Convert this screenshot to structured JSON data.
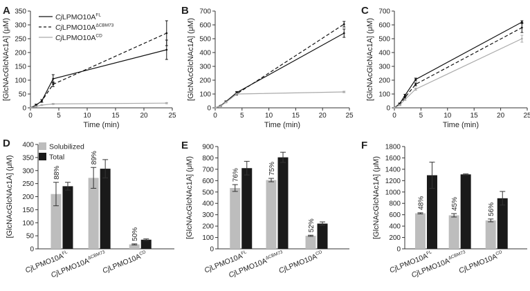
{
  "colors": {
    "fl": "#111111",
    "cbm": "#111111",
    "cd": "#aaaaaa",
    "solubilized": "#bdbdbd",
    "total": "#1a1a1a",
    "axis": "#333333"
  },
  "legend_line": [
    {
      "prefix": "Cj",
      "main": "LPMO10A",
      "sup": "FL",
      "style": "solid",
      "color": "#111111"
    },
    {
      "prefix": "Cj",
      "main": "LPMO10A",
      "sup": "ΔCBM73",
      "style": "dashed",
      "color": "#111111"
    },
    {
      "prefix": "Cj",
      "main": "LPMO10A",
      "sup": "CD",
      "style": "solid",
      "color": "#aaaaaa"
    }
  ],
  "legend_bar": [
    {
      "label": "Solubilized",
      "color": "#bdbdbd"
    },
    {
      "label": "Total",
      "color": "#1a1a1a"
    }
  ],
  "chart_data": [
    {
      "panel": "A",
      "type": "line",
      "xlabel": "Time (min)",
      "ylabel": "[GlcNAcGlcNAc1A] (μM)",
      "xlim": [
        0,
        25
      ],
      "ylim": [
        0,
        350
      ],
      "xticks": [
        0,
        5,
        10,
        15,
        20,
        25
      ],
      "yticks": [
        0,
        50,
        100,
        150,
        200,
        250,
        300,
        350
      ],
      "x": [
        0,
        1,
        2,
        4,
        24
      ],
      "series": [
        {
          "name": "CjLPMO10AFL",
          "style": "solid",
          "color": "#111111",
          "values": [
            0,
            10,
            25,
            105,
            210
          ],
          "errors": [
            0,
            3,
            5,
            15,
            35
          ]
        },
        {
          "name": "CjLPMO10AΔCBM73",
          "style": "dashed",
          "color": "#111111",
          "values": [
            0,
            10,
            25,
            85,
            270
          ],
          "errors": [
            0,
            3,
            5,
            8,
            45
          ]
        },
        {
          "name": "CjLPMO10ACD",
          "style": "solid",
          "color": "#aaaaaa",
          "values": [
            0,
            5,
            10,
            14,
            17
          ],
          "errors": [
            0,
            1,
            1,
            2,
            2
          ]
        }
      ]
    },
    {
      "panel": "B",
      "type": "line",
      "xlabel": "Time (min)",
      "ylabel": "[GlcNAcGlcNAc1A] (μM)",
      "xlim": [
        0,
        25
      ],
      "ylim": [
        0,
        700
      ],
      "xticks": [
        0,
        5,
        10,
        15,
        20,
        25
      ],
      "yticks": [
        0,
        100,
        200,
        300,
        400,
        500,
        600,
        700
      ],
      "x": [
        0,
        1,
        2,
        4,
        24
      ],
      "series": [
        {
          "name": "CjLPMO10AFL",
          "style": "solid",
          "color": "#111111",
          "values": [
            0,
            15,
            45,
            110,
            540
          ],
          "errors": [
            0,
            3,
            5,
            8,
            30
          ]
        },
        {
          "name": "CjLPMO10AΔCBM73",
          "style": "dashed",
          "color": "#111111",
          "values": [
            0,
            12,
            42,
            100,
            605
          ],
          "errors": [
            0,
            3,
            5,
            8,
            20
          ]
        },
        {
          "name": "CjLPMO10ACD",
          "style": "solid",
          "color": "#aaaaaa",
          "values": [
            0,
            12,
            40,
            100,
            115
          ],
          "errors": [
            0,
            2,
            3,
            4,
            5
          ]
        }
      ]
    },
    {
      "panel": "C",
      "type": "line",
      "xlabel": "Time (min)",
      "ylabel": "[GlcNAcGlcNAc1A] (μM)",
      "xlim": [
        0,
        25
      ],
      "ylim": [
        0,
        700
      ],
      "xticks": [
        0,
        5,
        10,
        15,
        20,
        25
      ],
      "yticks": [
        0,
        100,
        200,
        300,
        400,
        500,
        600,
        700
      ],
      "x": [
        0,
        1,
        2,
        4,
        24
      ],
      "series": [
        {
          "name": "CjLPMO10AFL",
          "style": "solid",
          "color": "#111111",
          "values": [
            0,
            30,
            90,
            205,
            620
          ],
          "errors": [
            0,
            5,
            8,
            10,
            10
          ]
        },
        {
          "name": "CjLPMO10AΔCBM73",
          "style": "dashed",
          "color": "#111111",
          "values": [
            0,
            25,
            75,
            170,
            580
          ],
          "errors": [
            0,
            5,
            8,
            10,
            35
          ]
        },
        {
          "name": "CjLPMO10ACD",
          "style": "solid",
          "color": "#aaaaaa",
          "values": [
            0,
            20,
            60,
            135,
            500
          ],
          "errors": [
            0,
            4,
            6,
            8,
            25
          ]
        }
      ]
    },
    {
      "panel": "D",
      "type": "bar",
      "ylabel": "[GlcNAcGlcNAc1A] (μM)",
      "ylim": [
        0,
        400
      ],
      "yticks": [
        0,
        50,
        100,
        150,
        200,
        250,
        300,
        350,
        400
      ],
      "categories": [
        {
          "prefix": "Cj",
          "main": "LPMO10A",
          "sup": "FL"
        },
        {
          "prefix": "Cj",
          "main": "LPMO10A",
          "sup": "ΔCBM73"
        },
        {
          "prefix": "Cj",
          "main": "LPMO10A",
          "sup": "CD"
        }
      ],
      "series": [
        {
          "name": "Solubilized",
          "values": [
            210,
            272,
            17
          ],
          "errors": [
            45,
            40,
            2
          ]
        },
        {
          "name": "Total",
          "values": [
            240,
            307,
            35
          ],
          "errors": [
            15,
            35,
            3
          ]
        }
      ],
      "percent_labels": [
        "88%",
        "89%",
        "50%"
      ]
    },
    {
      "panel": "E",
      "type": "bar",
      "ylabel": "[GlcNAcGlcNAc1A] (μM)",
      "ylim": [
        0,
        900
      ],
      "yticks": [
        0,
        100,
        200,
        300,
        400,
        500,
        600,
        700,
        800,
        900
      ],
      "categories": [
        {
          "prefix": "Cj",
          "main": "LPMO10A",
          "sup": "FL"
        },
        {
          "prefix": "Cj",
          "main": "LPMO10A",
          "sup": "ΔCBM73"
        },
        {
          "prefix": "Cj",
          "main": "LPMO10A",
          "sup": "CD"
        }
      ],
      "series": [
        {
          "name": "Solubilized",
          "values": [
            535,
            605,
            115
          ],
          "errors": [
            30,
            15,
            5
          ]
        },
        {
          "name": "Total",
          "values": [
            710,
            805,
            222
          ],
          "errors": [
            60,
            45,
            15
          ]
        }
      ],
      "percent_labels": [
        "76%",
        "75%",
        "52%"
      ]
    },
    {
      "panel": "F",
      "type": "bar",
      "ylabel": "[GlcNAcGlcNAc1A] (μM)",
      "ylim": [
        0,
        1800
      ],
      "yticks": [
        0,
        200,
        400,
        600,
        800,
        1000,
        1200,
        1400,
        1600,
        1800
      ],
      "categories": [
        {
          "prefix": "Cj",
          "main": "LPMO10A",
          "sup": "FL"
        },
        {
          "prefix": "Cj",
          "main": "LPMO10A",
          "sup": "ΔCBM73"
        },
        {
          "prefix": "Cj",
          "main": "LPMO10A",
          "sup": "CD"
        }
      ],
      "series": [
        {
          "name": "Solubilized",
          "values": [
            625,
            590,
            500
          ],
          "errors": [
            10,
            30,
            25
          ]
        },
        {
          "name": "Total",
          "values": [
            1295,
            1310,
            890
          ],
          "errors": [
            230,
            8,
            120
          ]
        }
      ],
      "percent_labels": [
        "48%",
        "45%",
        "56%"
      ]
    }
  ]
}
